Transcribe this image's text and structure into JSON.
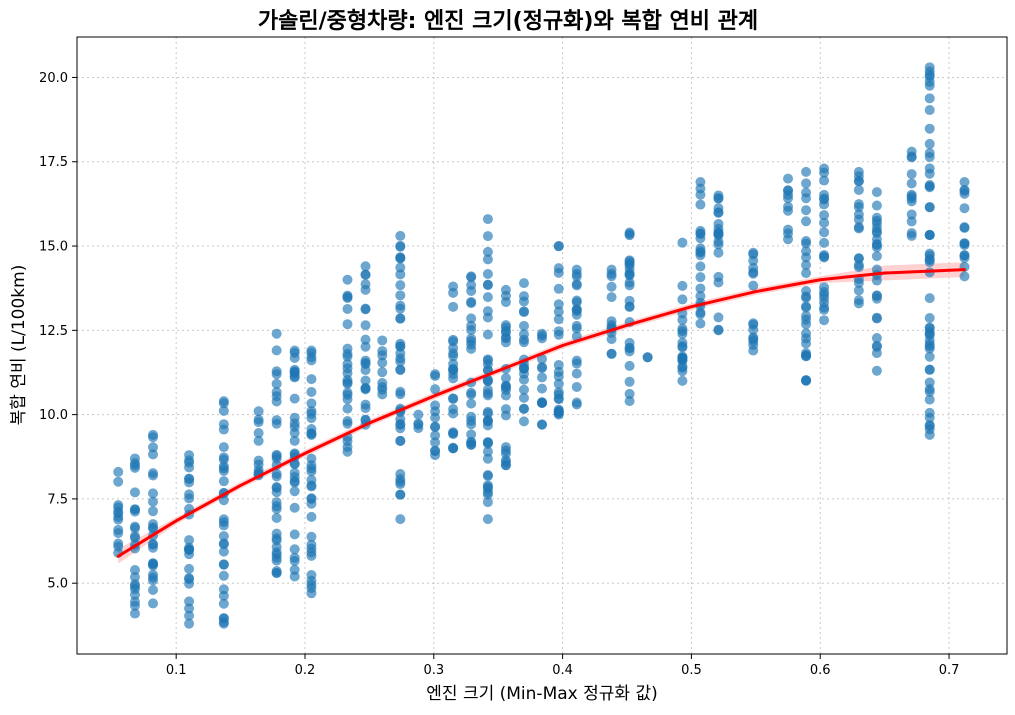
{
  "chart_data": {
    "type": "scatter",
    "title": "가솔린/중형차량: 엔진 크기(정규화)와 복합 연비 관계",
    "xlabel": "엔진 크기 (Min-Max 정규화 값)",
    "ylabel": "복합 연비 (L/100km)",
    "xlim": [
      0.023,
      0.745
    ],
    "ylim": [
      2.9,
      21.2
    ],
    "xticks": [
      0.1,
      0.2,
      0.3,
      0.4,
      0.5,
      0.6,
      0.7
    ],
    "xtick_labels": [
      "0.1",
      "0.2",
      "0.3",
      "0.4",
      "0.5",
      "0.6",
      "0.7"
    ],
    "yticks": [
      5.0,
      7.5,
      10.0,
      12.5,
      15.0,
      17.5,
      20.0
    ],
    "ytick_labels": [
      "5.0",
      "7.5",
      "10.0",
      "12.5",
      "15.0",
      "17.5",
      "20.0"
    ],
    "grid": true,
    "colors": {
      "points": "#1f77b4",
      "fit": "#ff0000",
      "band": "#ffb3b3"
    },
    "columns": [
      {
        "x": 0.055,
        "ymin": 5.9,
        "ymax": 8.3
      },
      {
        "x": 0.068,
        "ymin": 4.1,
        "ymax": 8.7
      },
      {
        "x": 0.082,
        "ymin": 4.4,
        "ymax": 9.4
      },
      {
        "x": 0.11,
        "ymin": 3.8,
        "ymax": 8.8
      },
      {
        "x": 0.137,
        "ymin": 3.8,
        "ymax": 10.4
      },
      {
        "x": 0.164,
        "ymin": 8.2,
        "ymax": 10.1
      },
      {
        "x": 0.178,
        "ymin": 5.3,
        "ymax": 12.4
      },
      {
        "x": 0.192,
        "ymin": 5.2,
        "ymax": 11.9
      },
      {
        "x": 0.205,
        "ymin": 4.7,
        "ymax": 11.9
      },
      {
        "x": 0.233,
        "ymin": 8.9,
        "ymax": 14.0
      },
      {
        "x": 0.247,
        "ymin": 9.7,
        "ymax": 14.4
      },
      {
        "x": 0.26,
        "ymin": 10.6,
        "ymax": 12.2
      },
      {
        "x": 0.274,
        "ymin": 6.9,
        "ymax": 15.3
      },
      {
        "x": 0.288,
        "ymin": 9.6,
        "ymax": 10.0
      },
      {
        "x": 0.301,
        "ymin": 8.8,
        "ymax": 11.2
      },
      {
        "x": 0.315,
        "ymin": 9.0,
        "ymax": 13.8
      },
      {
        "x": 0.329,
        "ymin": 9.1,
        "ymax": 14.1
      },
      {
        "x": 0.342,
        "ymin": 6.9,
        "ymax": 15.8
      },
      {
        "x": 0.356,
        "ymin": 8.5,
        "ymax": 13.7
      },
      {
        "x": 0.37,
        "ymin": 9.8,
        "ymax": 13.9
      },
      {
        "x": 0.384,
        "ymin": 9.7,
        "ymax": 12.4
      },
      {
        "x": 0.397,
        "ymin": 10.0,
        "ymax": 15.0
      },
      {
        "x": 0.411,
        "ymin": 10.3,
        "ymax": 14.3
      },
      {
        "x": 0.438,
        "ymin": 11.8,
        "ymax": 14.3
      },
      {
        "x": 0.452,
        "ymin": 10.4,
        "ymax": 15.4
      },
      {
        "x": 0.466,
        "ymin": 11.7,
        "ymax": 11.7
      },
      {
        "x": 0.493,
        "ymin": 11.0,
        "ymax": 15.1
      },
      {
        "x": 0.507,
        "ymin": 12.7,
        "ymax": 16.9
      },
      {
        "x": 0.521,
        "ymin": 12.5,
        "ymax": 16.5
      },
      {
        "x": 0.548,
        "ymin": 11.9,
        "ymax": 14.8
      },
      {
        "x": 0.575,
        "ymin": 15.2,
        "ymax": 17.0
      },
      {
        "x": 0.589,
        "ymin": 11.0,
        "ymax": 17.2
      },
      {
        "x": 0.603,
        "ymin": 12.8,
        "ymax": 17.3
      },
      {
        "x": 0.63,
        "ymin": 13.3,
        "ymax": 17.2
      },
      {
        "x": 0.644,
        "ymin": 11.3,
        "ymax": 16.6
      },
      {
        "x": 0.671,
        "ymin": 15.3,
        "ymax": 17.8
      },
      {
        "x": 0.685,
        "ymin": 9.4,
        "ymax": 20.3
      },
      {
        "x": 0.712,
        "ymin": 14.1,
        "ymax": 16.9
      }
    ],
    "fit_curve": {
      "x": [
        0.055,
        0.1,
        0.15,
        0.2,
        0.25,
        0.3,
        0.35,
        0.4,
        0.45,
        0.5,
        0.55,
        0.6,
        0.65,
        0.712
      ],
      "y": [
        5.8,
        6.85,
        7.9,
        8.85,
        9.75,
        10.55,
        11.3,
        12.05,
        12.65,
        13.2,
        13.65,
        14.0,
        14.2,
        14.3
      ]
    }
  }
}
